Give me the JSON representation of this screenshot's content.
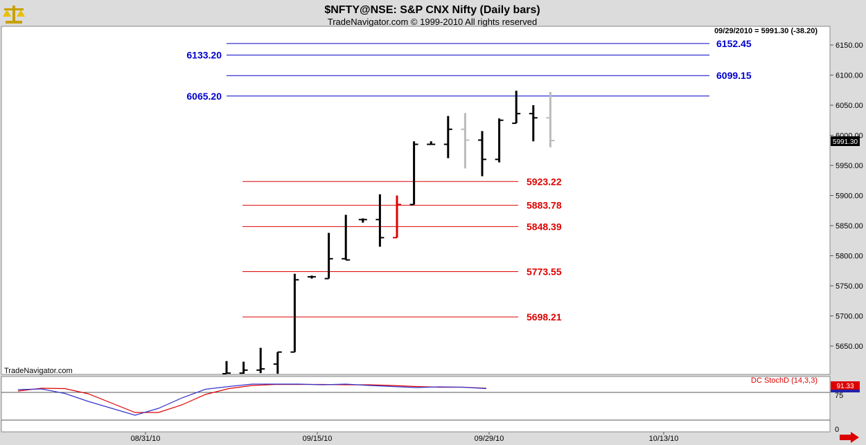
{
  "header": {
    "title": "$NFTY@NSE:  S&P CNX Nifty  (Daily bars)",
    "subtitle": "TradeNavigator.com © 1999-2010 All rights reserved",
    "info": "09/29/2010 = 5991.30 (-38.20)"
  },
  "watermark": "TradeNavigator.com",
  "price_tag": "5991.30",
  "indicator": {
    "label": "DC StochD (14,3,3)",
    "value_tag": "91.33",
    "level_label": "75",
    "zero_label": "0"
  },
  "colors": {
    "up_levels": "#0000cc",
    "down_levels": "#dd0000",
    "bars": "#000000",
    "projected": "#bbbbbb",
    "highlight": "#dd0000",
    "stoch_k": "#3333cc",
    "stoch_d": "#dd0000"
  },
  "icons": {
    "logo": "balance-scale-icon",
    "scroll": "right-arrow-icon"
  },
  "chart_data": {
    "type": "ohlc-bar",
    "title": "$NFTY@NSE:  S&P CNX Nifty  (Daily bars)",
    "y_ticks": [
      "5650.00",
      "5700.00",
      "5750.00",
      "5800.00",
      "5850.00",
      "5900.00",
      "5950.00",
      "6000.00",
      "6050.00",
      "6100.00",
      "6150.00"
    ],
    "ylim": [
      5600,
      6180
    ],
    "x_ticks": [
      "08/31/10",
      "09/15/10",
      "09/29/10",
      "10/13/10"
    ],
    "bars": [
      {
        "h": 5625,
        "l": 5595,
        "o": 5600,
        "c": 5605,
        "kind": "normal"
      },
      {
        "h": 5624,
        "l": 5600,
        "o": 5605,
        "c": 5610,
        "kind": "normal"
      },
      {
        "h": 5647,
        "l": 5605,
        "o": 5610,
        "c": 5612,
        "kind": "normal"
      },
      {
        "h": 5640,
        "l": 5600,
        "o": 5620,
        "c": 5640,
        "kind": "normal"
      },
      {
        "h": 5770,
        "l": 5640,
        "o": 5640,
        "c": 5760,
        "kind": "normal"
      },
      {
        "h": 5767,
        "l": 5762,
        "o": 5765,
        "c": 5765,
        "kind": "normal"
      },
      {
        "h": 5838,
        "l": 5762,
        "o": 5762,
        "c": 5795,
        "kind": "normal"
      },
      {
        "h": 5868,
        "l": 5793,
        "o": 5795,
        "c": 5793,
        "kind": "normal"
      },
      {
        "h": 5862,
        "l": 5855,
        "o": 5860,
        "c": 5860,
        "kind": "normal"
      },
      {
        "h": 5902,
        "l": 5815,
        "o": 5860,
        "c": 5830,
        "kind": "normal"
      },
      {
        "h": 5900,
        "l": 5830,
        "o": 5830,
        "c": 5885,
        "kind": "highlight"
      },
      {
        "h": 5990,
        "l": 5885,
        "o": 5885,
        "c": 5985,
        "kind": "normal"
      },
      {
        "h": 5990,
        "l": 5985,
        "o": 5985,
        "c": 5985,
        "kind": "normal"
      },
      {
        "h": 6032,
        "l": 5962,
        "o": 5985,
        "c": 6010,
        "kind": "normal"
      },
      {
        "h": 6037,
        "l": 5945,
        "o": 6010,
        "c": 5992,
        "kind": "projected"
      },
      {
        "h": 6007,
        "l": 5932,
        "o": 5992,
        "c": 5960,
        "kind": "normal"
      },
      {
        "h": 6028,
        "l": 5955,
        "o": 5960,
        "c": 6025,
        "kind": "normal"
      },
      {
        "h": 6074,
        "l": 6020,
        "o": 6020,
        "c": 6036,
        "kind": "normal"
      },
      {
        "h": 6050,
        "l": 5990,
        "o": 6036,
        "c": 6029,
        "kind": "normal"
      },
      {
        "h": 6072,
        "l": 5980,
        "o": 6029,
        "c": 5991.3,
        "kind": "projected"
      }
    ],
    "levels": [
      {
        "value": 6152.45,
        "label": "6152.45",
        "color": "up"
      },
      {
        "value": 6133.2,
        "label": "6133.20",
        "color": "up"
      },
      {
        "value": 6099.15,
        "label": "6099.15",
        "color": "up"
      },
      {
        "value": 6065.2,
        "label": "6065.20",
        "color": "up"
      },
      {
        "value": 5923.22,
        "label": "5923.22",
        "color": "down"
      },
      {
        "value": 5883.78,
        "label": "5883.78",
        "color": "down"
      },
      {
        "value": 5848.39,
        "label": "5848.39",
        "color": "down"
      },
      {
        "value": 5773.55,
        "label": "5773.55",
        "color": "down"
      },
      {
        "value": 5698.21,
        "label": "5698.21",
        "color": "down"
      }
    ],
    "stoch_k": [
      84,
      86,
      73,
      50,
      30,
      10,
      30,
      60,
      85,
      93,
      100,
      100,
      100,
      98,
      100,
      96,
      93,
      90,
      92,
      91,
      87
    ],
    "stoch_d": [
      80,
      88,
      87,
      72,
      45,
      18,
      18,
      40,
      70,
      87,
      96,
      99,
      99,
      99,
      98,
      98,
      96,
      93,
      91,
      91,
      88
    ]
  }
}
